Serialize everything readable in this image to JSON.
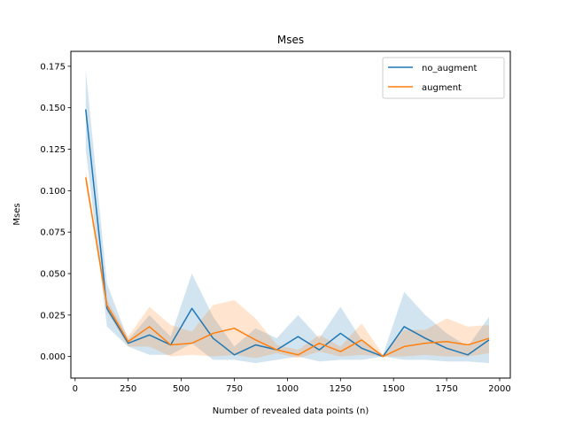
{
  "chart_data": {
    "type": "line",
    "title": "Mses",
    "xlabel": "Number of revealed data points (n)",
    "ylabel": "Mses",
    "xlim": [
      -20,
      2050
    ],
    "ylim": [
      -0.013,
      0.184
    ],
    "xticks": [
      0,
      250,
      500,
      750,
      1000,
      1250,
      1500,
      1750,
      2000
    ],
    "yticks": [
      0.0,
      0.025,
      0.05,
      0.075,
      0.1,
      0.125,
      0.15,
      0.175
    ],
    "legend": "top-right",
    "grid": false,
    "x": [
      50,
      150,
      250,
      350,
      450,
      550,
      650,
      750,
      850,
      950,
      1050,
      1150,
      1250,
      1350,
      1450,
      1550,
      1650,
      1750,
      1850,
      1950
    ],
    "series": [
      {
        "name": "no_augment",
        "color": "#1f77b4",
        "values": [
          0.149,
          0.029,
          0.008,
          0.013,
          0.007,
          0.029,
          0.011,
          0.001,
          0.007,
          0.004,
          0.012,
          0.004,
          0.014,
          0.005,
          0.0,
          0.018,
          0.011,
          0.005,
          0.001,
          0.01
        ],
        "upper": [
          0.173,
          0.044,
          0.01,
          0.025,
          0.012,
          0.05,
          0.024,
          0.006,
          0.017,
          0.011,
          0.025,
          0.011,
          0.03,
          0.01,
          0.001,
          0.039,
          0.025,
          0.014,
          0.006,
          0.024
        ],
        "lower": [
          0.125,
          0.018,
          0.006,
          0.001,
          0.001,
          0.008,
          -0.002,
          -0.002,
          -0.004,
          -0.002,
          0.0,
          -0.003,
          -0.002,
          -0.002,
          0.0,
          -0.002,
          -0.002,
          -0.003,
          -0.003,
          -0.004
        ]
      },
      {
        "name": "augment",
        "color": "#ff7f0e",
        "values": [
          0.108,
          0.031,
          0.009,
          0.018,
          0.007,
          0.008,
          0.014,
          0.017,
          0.01,
          0.004,
          0.001,
          0.008,
          0.003,
          0.01,
          0.0,
          0.006,
          0.008,
          0.009,
          0.007,
          0.011
        ],
        "upper": [
          0.112,
          0.034,
          0.012,
          0.03,
          0.019,
          0.015,
          0.031,
          0.034,
          0.023,
          0.007,
          0.004,
          0.013,
          0.006,
          0.02,
          0.001,
          0.016,
          0.016,
          0.023,
          0.018,
          0.019
        ],
        "lower": [
          0.104,
          0.027,
          0.006,
          0.006,
          0.0,
          0.001,
          0.0,
          0.001,
          -0.001,
          0.002,
          -0.001,
          0.003,
          0.0,
          0.001,
          0.0,
          0.0,
          0.001,
          0.0,
          0.0,
          0.002
        ]
      }
    ]
  }
}
